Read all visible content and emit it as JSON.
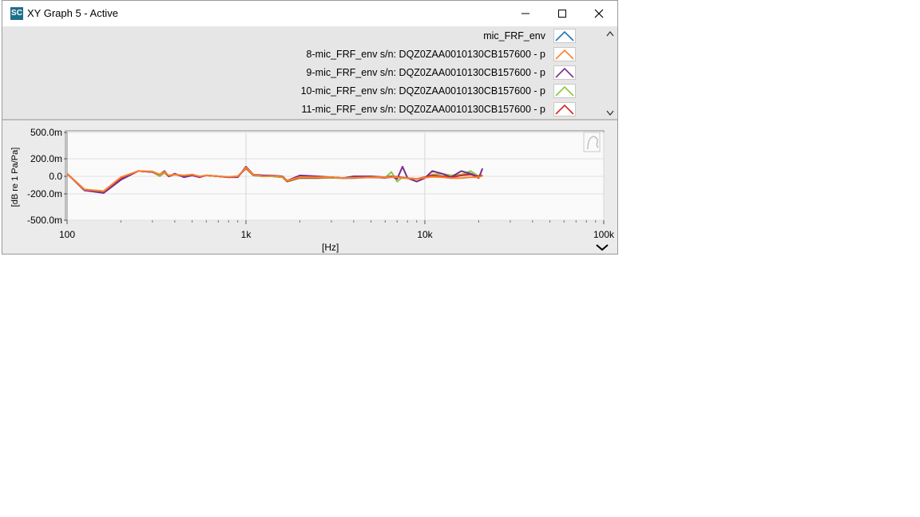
{
  "window": {
    "title": "XY Graph 5 - Active",
    "app_icon_text": "SC",
    "controls": [
      "minimize",
      "maximize",
      "close"
    ]
  },
  "legend": {
    "items": [
      {
        "label": "mic_FRF_env",
        "color": "#1f77b4"
      },
      {
        "label": "8-mic_FRF_env s/n: DQZ0ZAA0010130CB157600 - p",
        "color": "#ff7f2a"
      },
      {
        "label": "9-mic_FRF_env s/n: DQZ0ZAA0010130CB157600 - p",
        "color": "#7b2d8e"
      },
      {
        "label": "10-mic_FRF_env s/n: DQZ0ZAA0010130CB157600 - p",
        "color": "#8cc63f"
      },
      {
        "label": "11-mic_FRF_env s/n: DQZ0ZAA0010130CB157600 - p",
        "color": "#d62728"
      }
    ]
  },
  "chart_data": {
    "type": "line",
    "xscale": "log",
    "xlim": [
      100,
      100000
    ],
    "ylim": [
      -500,
      500
    ],
    "xlabel": "[Hz]",
    "ylabel": "[dB re 1 Pa/Pa]",
    "xticks": [
      "100",
      "1k",
      "10k",
      "100k"
    ],
    "yticks": [
      "500.0m",
      "200.0m",
      "0.0",
      "-200.0m",
      "-500.0m"
    ],
    "ytick_values": [
      500,
      200,
      0,
      -200,
      -500
    ],
    "grid": true,
    "x": [
      100,
      125,
      160,
      200,
      250,
      300,
      330,
      350,
      370,
      400,
      450,
      500,
      550,
      600,
      700,
      800,
      900,
      1000,
      1100,
      1250,
      1400,
      1600,
      1700,
      2000,
      2500,
      3000,
      3500,
      4000,
      5000,
      6000,
      6500,
      7000,
      7500,
      8000,
      9000,
      10000,
      11000,
      12500,
      14000,
      16000,
      18000,
      20000,
      21000
    ],
    "series": [
      {
        "name": "mic_FRF_env",
        "color": "#1f77b4",
        "values": [
          30,
          -150,
          -170,
          -20,
          60,
          50,
          10,
          50,
          0,
          20,
          0,
          20,
          -5,
          10,
          0,
          -10,
          0,
          90,
          10,
          0,
          0,
          -10,
          -60,
          -20,
          -20,
          -15,
          -20,
          -20,
          -10,
          -15,
          -10,
          -5,
          -15,
          -20,
          -30,
          -10,
          10,
          0,
          -10,
          10,
          30,
          0,
          10
        ]
      },
      {
        "name": "8-mic_FRF_env s/n: DQZ0ZAA0010130CB157600 - p",
        "color": "#ff7f2a",
        "values": [
          30,
          -150,
          -170,
          -10,
          60,
          55,
          20,
          50,
          10,
          20,
          10,
          20,
          0,
          10,
          0,
          -5,
          0,
          100,
          20,
          0,
          5,
          -5,
          -50,
          -10,
          -10,
          -10,
          -20,
          -15,
          -10,
          -10,
          -10,
          -10,
          -20,
          -20,
          -30,
          -15,
          -5,
          -10,
          -20,
          -20,
          -10,
          -10,
          5
        ]
      },
      {
        "name": "9-mic_FRF_env s/n: DQZ0ZAA0010130CB157600 - p",
        "color": "#7b2d8e",
        "values": [
          30,
          -160,
          -190,
          -40,
          60,
          50,
          20,
          60,
          0,
          30,
          -10,
          10,
          -10,
          10,
          0,
          -10,
          -10,
          110,
          20,
          10,
          10,
          0,
          -50,
          10,
          0,
          -10,
          -20,
          0,
          0,
          -10,
          0,
          -30,
          110,
          -20,
          -60,
          -20,
          60,
          30,
          -10,
          60,
          30,
          -20,
          90
        ]
      },
      {
        "name": "10-mic_FRF_env s/n: DQZ0ZAA0010130CB157600 - p",
        "color": "#8cc63f",
        "values": [
          30,
          -150,
          -170,
          -20,
          60,
          50,
          0,
          40,
          0,
          20,
          0,
          20,
          -5,
          10,
          0,
          -10,
          0,
          90,
          10,
          0,
          0,
          -10,
          -60,
          -20,
          -20,
          -15,
          -20,
          -20,
          -10,
          -15,
          50,
          -60,
          -10,
          -20,
          -30,
          -10,
          20,
          30,
          10,
          20,
          60,
          0,
          10
        ]
      },
      {
        "name": "11-mic_FRF_env s/n: DQZ0ZAA0010130CB157600 - p",
        "color": "#d62728",
        "values": [
          30,
          -150,
          -175,
          -20,
          60,
          50,
          20,
          50,
          0,
          25,
          0,
          20,
          -5,
          10,
          0,
          -10,
          0,
          95,
          15,
          5,
          5,
          -5,
          -55,
          -15,
          -15,
          -10,
          -20,
          -15,
          -10,
          -15,
          -5,
          -5,
          -15,
          -20,
          -30,
          -10,
          10,
          0,
          -10,
          10,
          20,
          0,
          10
        ]
      }
    ]
  }
}
